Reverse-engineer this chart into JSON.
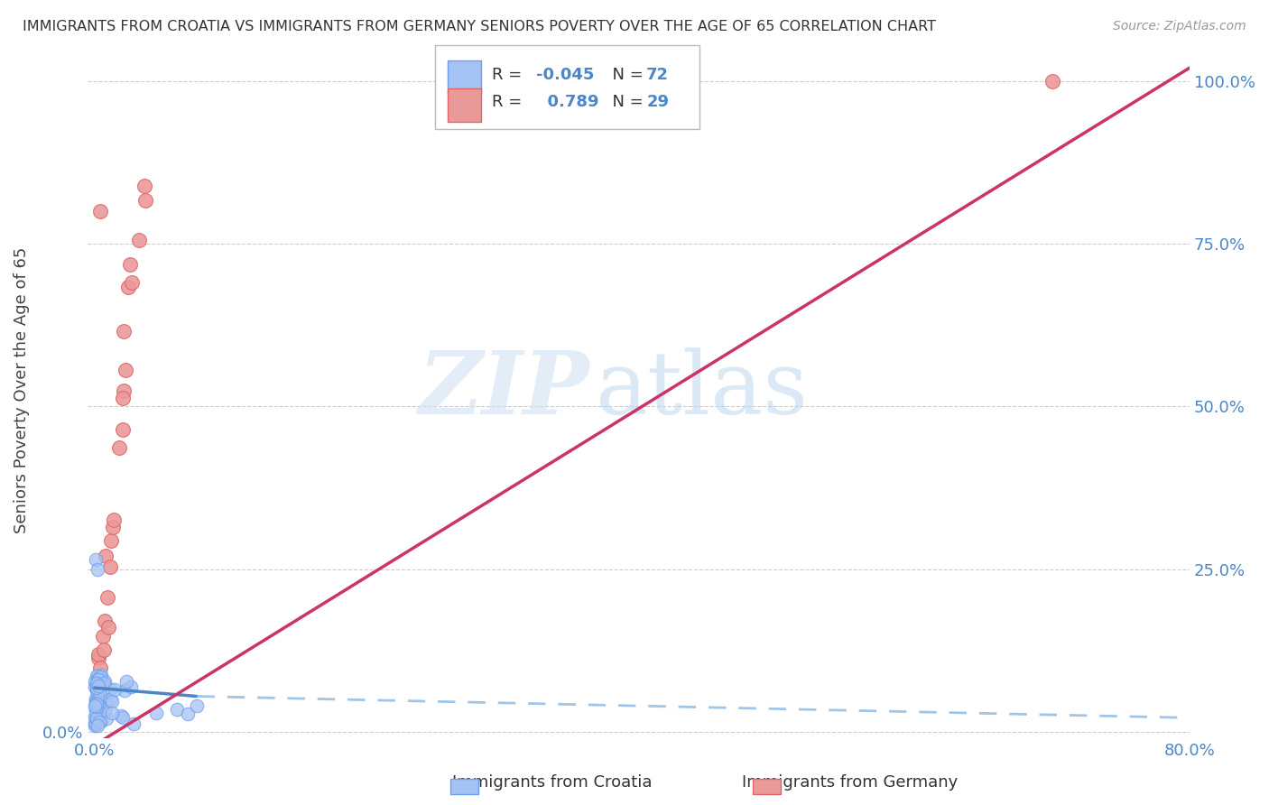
{
  "title": "IMMIGRANTS FROM CROATIA VS IMMIGRANTS FROM GERMANY SENIORS POVERTY OVER THE AGE OF 65 CORRELATION CHART",
  "source": "Source: ZipAtlas.com",
  "ylabel": "Seniors Poverty Over the Age of 65",
  "xlim": [
    -0.005,
    0.8
  ],
  "ylim": [
    -0.01,
    1.06
  ],
  "xticks": [
    0.0,
    0.1,
    0.2,
    0.3,
    0.4,
    0.5,
    0.6,
    0.7,
    0.8
  ],
  "xticklabels": [
    "0.0%",
    "",
    "",
    "",
    "",
    "",
    "",
    "",
    "80.0%"
  ],
  "yticks": [
    0.0,
    0.25,
    0.5,
    0.75,
    1.0
  ],
  "yticklabels_left": [
    "0.0%",
    "",
    "",
    "",
    ""
  ],
  "yticklabels_right": [
    "",
    "25.0%",
    "50.0%",
    "75.0%",
    "100.0%"
  ],
  "croatia_color": "#a4c2f4",
  "germany_color": "#ea9999",
  "croatia_edge": "#6d9eeb",
  "germany_edge": "#e06666",
  "croatia_R": -0.045,
  "croatia_N": 72,
  "germany_R": 0.789,
  "germany_N": 29,
  "watermark_zip": "ZIP",
  "watermark_atlas": "atlas",
  "legend_croatia": "Immigrants from Croatia",
  "legend_germany": "Immigrants from Germany",
  "croatia_line_color": "#4a86c8",
  "croatia_line_dash_color": "#9fc5e8",
  "germany_line_color": "#cc3366",
  "croatia_line_x0": 0.0,
  "croatia_line_x1": 0.075,
  "croatia_line_x2": 0.8,
  "croatia_line_y0": 0.068,
  "croatia_line_y1": 0.055,
  "croatia_line_y2": 0.022,
  "germany_line_x0": 0.0,
  "germany_line_x1": 0.8,
  "germany_line_y0": -0.02,
  "germany_line_y1": 1.02
}
